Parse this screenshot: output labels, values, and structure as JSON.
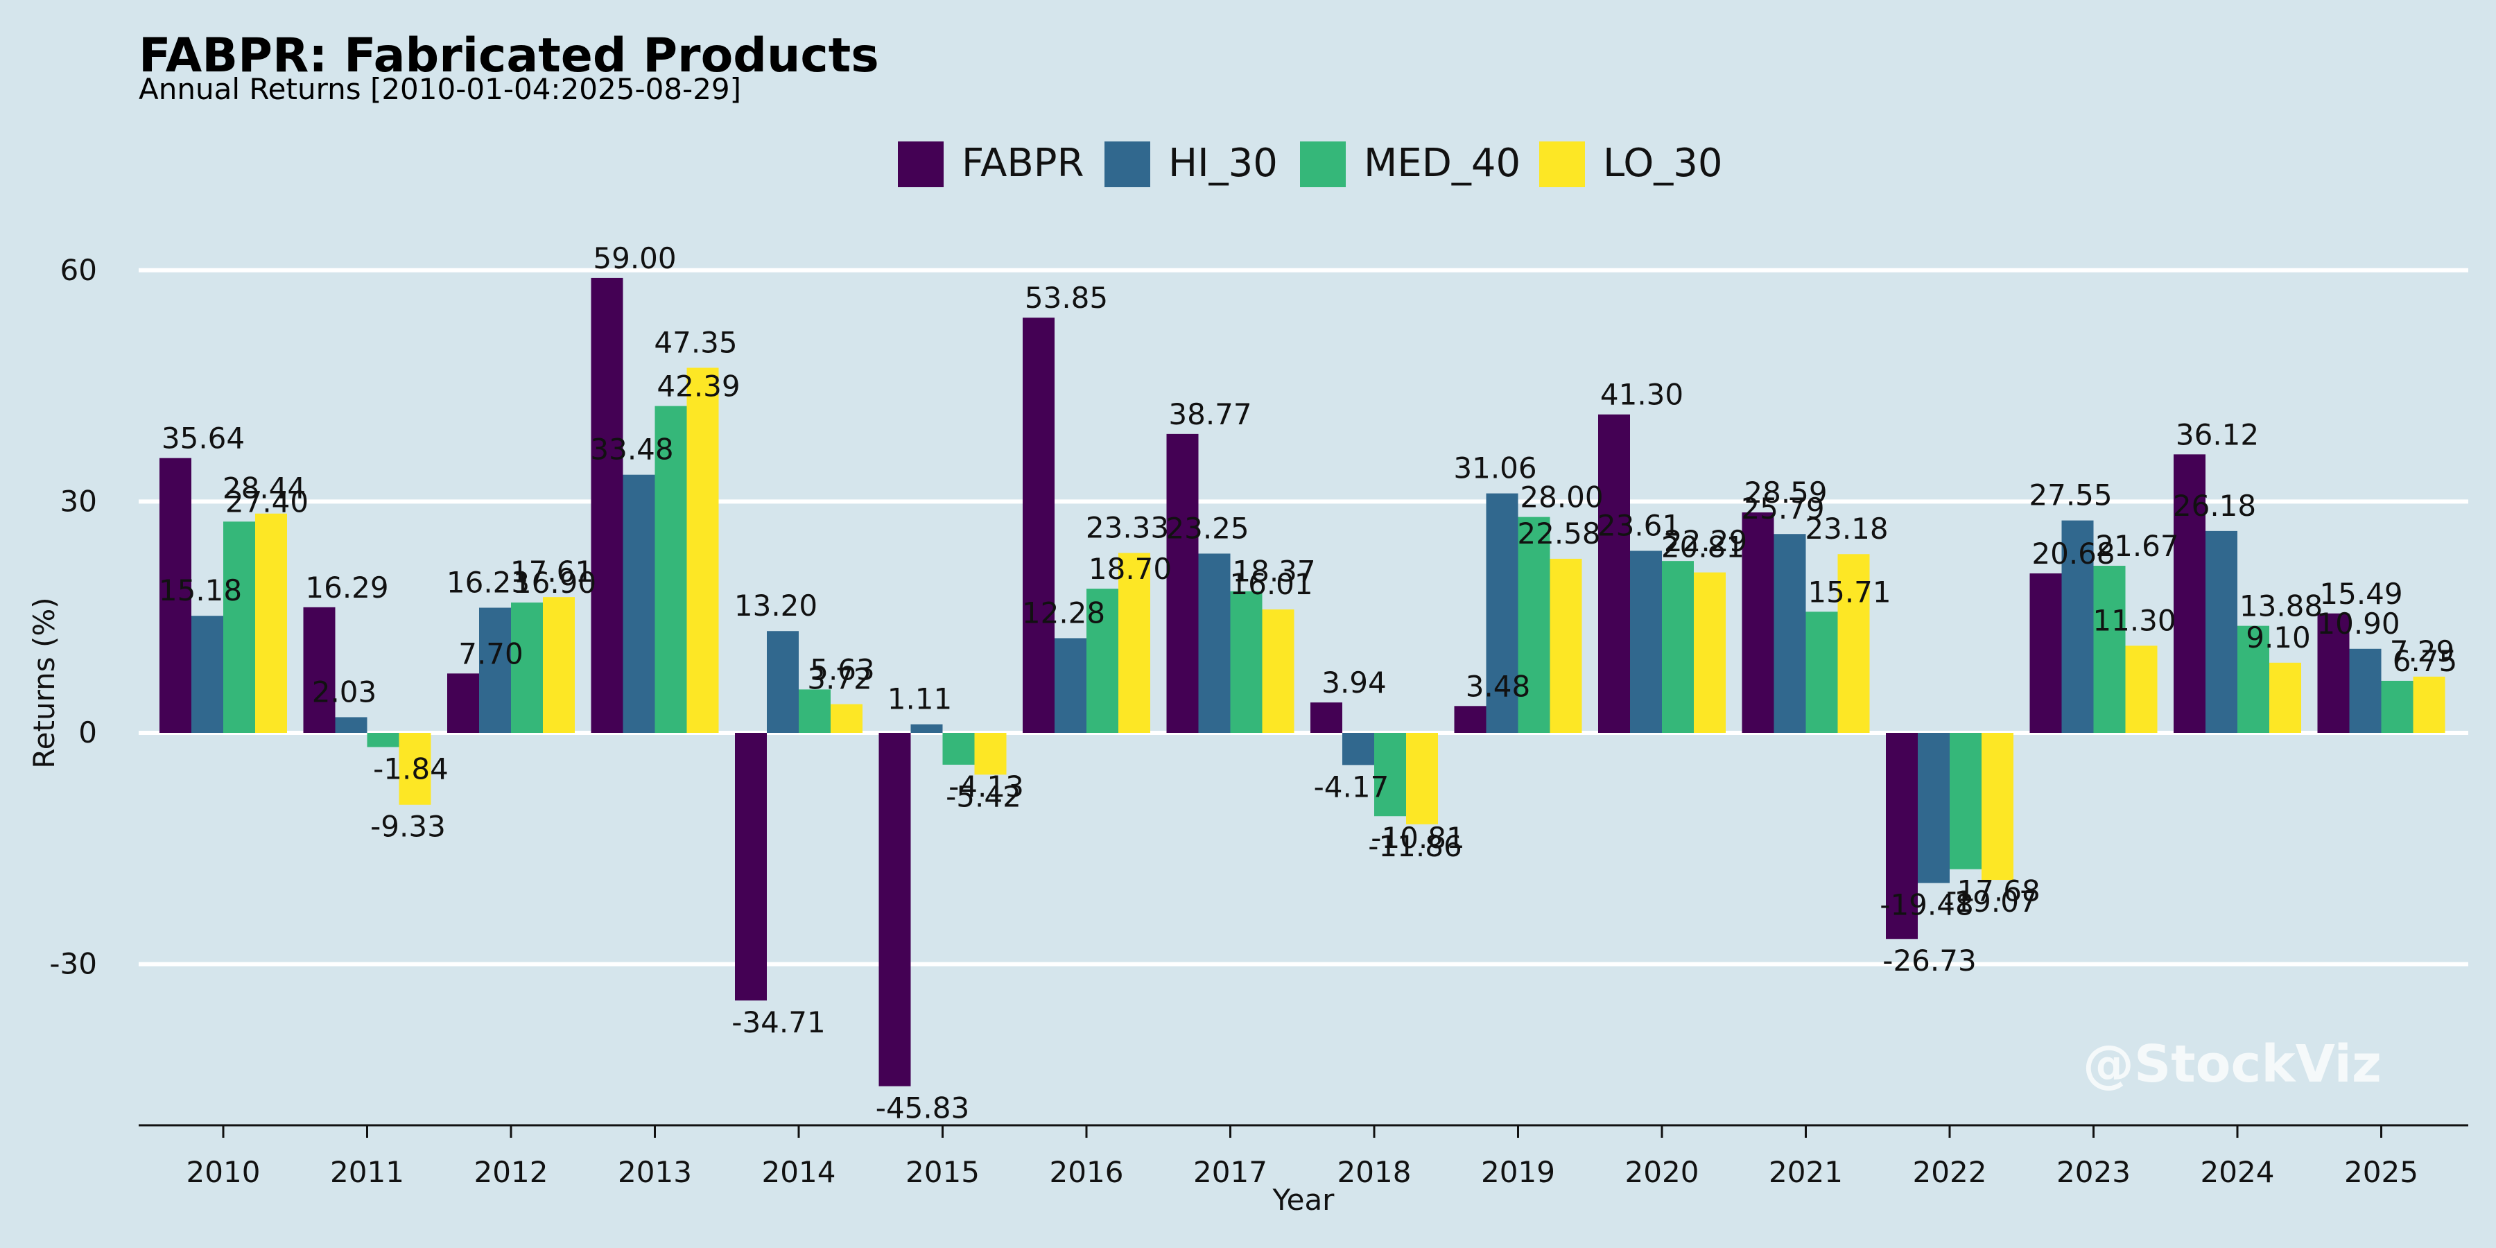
{
  "chart_data": {
    "type": "bar",
    "title": "FABPR: Fabricated Products",
    "subtitle": "Annual Returns [2010-01-04:2025-08-29]",
    "xlabel": "Year",
    "ylabel": "Returns (%)",
    "categories": [
      "2010",
      "2011",
      "2012",
      "2013",
      "2014",
      "2015",
      "2016",
      "2017",
      "2018",
      "2019",
      "2020",
      "2021",
      "2022",
      "2023",
      "2024",
      "2025"
    ],
    "series": [
      {
        "name": "FABPR",
        "color": "#440154",
        "values": [
          35.64,
          16.29,
          7.7,
          59.0,
          -34.71,
          -45.83,
          53.85,
          38.77,
          3.94,
          3.48,
          41.3,
          28.59,
          -26.73,
          20.68,
          36.12,
          15.49
        ]
      },
      {
        "name": "HI_30",
        "color": "#31688e",
        "values": [
          15.18,
          2.03,
          16.23,
          33.48,
          13.2,
          1.11,
          12.28,
          23.25,
          -4.17,
          31.06,
          23.61,
          25.79,
          -19.48,
          27.55,
          26.18,
          10.9
        ]
      },
      {
        "name": "MED_40",
        "color": "#35b779",
        "values": [
          27.4,
          -1.84,
          16.9,
          42.39,
          5.63,
          -4.13,
          18.7,
          18.37,
          -10.81,
          28.0,
          22.29,
          15.71,
          -17.68,
          21.67,
          13.88,
          6.75
        ]
      },
      {
        "name": "LO_30",
        "color": "#fde725",
        "values": [
          28.44,
          -9.33,
          17.61,
          47.35,
          3.72,
          -5.42,
          23.33,
          16.01,
          -11.86,
          22.58,
          20.81,
          23.18,
          -19.07,
          11.3,
          9.1,
          7.29
        ]
      }
    ],
    "yticks": [
      -30,
      0,
      30,
      60
    ],
    "ylim": [
      -50,
      70
    ],
    "grid": "horizontal",
    "legend": "top-center",
    "watermark": "@StockViz"
  }
}
